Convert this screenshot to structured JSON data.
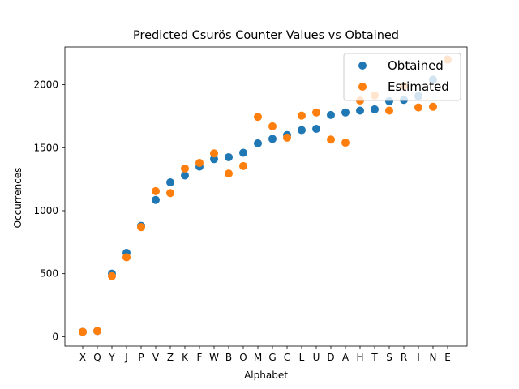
{
  "chart_data": {
    "type": "scatter",
    "title": "Predicted Csurös Counter Values vs Obtained",
    "xlabel": "Alphabet",
    "ylabel": "Occurrences",
    "categories": [
      "X",
      "Q",
      "Y",
      "J",
      "P",
      "V",
      "Z",
      "K",
      "F",
      "W",
      "B",
      "O",
      "M",
      "G",
      "C",
      "L",
      "U",
      "D",
      "A",
      "H",
      "T",
      "S",
      "R",
      "I",
      "N",
      "E"
    ],
    "ylim": [
      -75,
      2300
    ],
    "yticks": [
      0,
      500,
      1000,
      1500,
      2000
    ],
    "grid": false,
    "legend_position": "top-right",
    "series": [
      {
        "name": "Obtained",
        "color": "#1f77b4",
        "values": [
          38,
          45,
          500,
          665,
          880,
          1085,
          1225,
          1280,
          1350,
          1410,
          1425,
          1460,
          1535,
          1570,
          1600,
          1640,
          1650,
          1760,
          1780,
          1795,
          1805,
          1870,
          1880,
          1910,
          2040,
          2200
        ]
      },
      {
        "name": "Estimated",
        "color": "#ff7f0e",
        "values": [
          38,
          45,
          480,
          630,
          870,
          1155,
          1140,
          1335,
          1380,
          1455,
          1295,
          1355,
          1745,
          1670,
          1580,
          1755,
          1780,
          1565,
          1540,
          1875,
          1915,
          1795,
          1990,
          1820,
          1825,
          2200
        ]
      }
    ]
  }
}
